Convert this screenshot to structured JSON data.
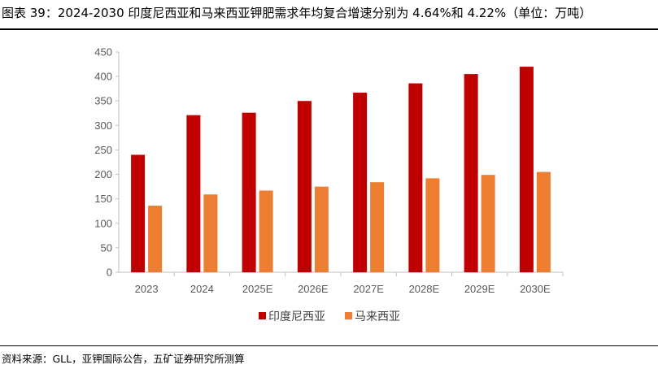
{
  "header": {
    "title": "图表 39：2024-2030 印度尼西亚和马来西亚钾肥需求年均复合增速分别为 4.64%和 4.22%（单位：万吨）"
  },
  "footer": {
    "source": "资料来源：GLL，亚钾国际公告，五矿证券研究所测算"
  },
  "chart_data": {
    "type": "bar",
    "title": "",
    "xlabel": "",
    "ylabel": "",
    "ylim": [
      0,
      450
    ],
    "yticks": [
      0,
      50,
      100,
      150,
      200,
      250,
      300,
      350,
      400,
      450
    ],
    "grid": false,
    "legend": "bottom",
    "categories": [
      "2023",
      "2024",
      "2025E",
      "2026E",
      "2027E",
      "2028E",
      "2029E",
      "2030E"
    ],
    "series": [
      {
        "name": "印度尼西亚",
        "color": "#C00000",
        "values": [
          240,
          321,
          326,
          350,
          367,
          386,
          405,
          420
        ]
      },
      {
        "name": "马来西亚",
        "color": "#ED7D31",
        "values": [
          136,
          159,
          167,
          175,
          184,
          192,
          199,
          205
        ]
      }
    ]
  }
}
